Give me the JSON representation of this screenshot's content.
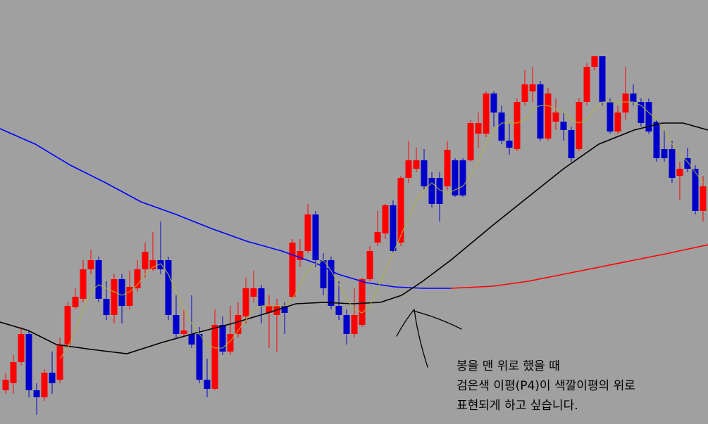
{
  "chart_data": {
    "type": "candlestick",
    "xlim": [
      -0.73,
      90.64
    ],
    "ylim": [
      0,
      600
    ],
    "up_color": "#ff0000",
    "down_color": "#0000cc",
    "candles": {
      "x": [
        0,
        1,
        2,
        3,
        4,
        5,
        6,
        7,
        8,
        9,
        10,
        11,
        12,
        13,
        14,
        15,
        16,
        17,
        18,
        19,
        20,
        21,
        22,
        23,
        24,
        25,
        26,
        27,
        28,
        29,
        30,
        31,
        32,
        33,
        34,
        35,
        36,
        37,
        38,
        39,
        40,
        41,
        42,
        43,
        44,
        45,
        46,
        47,
        48,
        49,
        50,
        51,
        52,
        53,
        54,
        55,
        56,
        57,
        58,
        59,
        60,
        61,
        62,
        63,
        64,
        65,
        66,
        67,
        68,
        69,
        70,
        71,
        72,
        73,
        74,
        75,
        76,
        77,
        78,
        79,
        80,
        81,
        82,
        83,
        84,
        85,
        86,
        87,
        88,
        89,
        90
      ],
      "open": [
        45,
        55,
        85,
        125,
        45,
        35,
        70,
        60,
        110,
        163,
        175,
        217,
        230,
        175,
        152,
        203,
        165,
        190,
        217,
        217,
        230,
        230,
        152,
        125,
        125,
        125,
        60,
        47,
        138,
        100,
        125,
        150,
        178,
        190,
        155,
        152,
        165,
        178,
        230,
        243,
        295,
        230,
        230,
        165,
        152,
        125,
        138,
        203,
        255,
        268,
        308,
        255,
        347,
        360,
        372,
        347,
        347,
        335,
        372,
        372,
        372,
        410,
        410,
        467,
        440,
        400,
        388,
        455,
        470,
        480,
        403,
        427,
        427,
        415,
        388,
        455,
        505,
        520,
        455,
        413,
        440,
        467,
        455,
        455,
        427,
        388,
        388,
        350,
        375,
        360,
        300
      ],
      "high": [
        70,
        95,
        135,
        130,
        55,
        75,
        100,
        120,
        170,
        190,
        230,
        245,
        235,
        200,
        210,
        210,
        215,
        230,
        255,
        270,
        285,
        235,
        180,
        160,
        180,
        135,
        90,
        160,
        150,
        165,
        170,
        205,
        215,
        195,
        180,
        175,
        170,
        260,
        260,
        310,
        300,
        240,
        235,
        200,
        160,
        190,
        205,
        250,
        300,
        310,
        315,
        350,
        400,
        390,
        388,
        355,
        355,
        400,
        375,
        375,
        430,
        440,
        470,
        470,
        450,
        425,
        460,
        500,
        505,
        485,
        475,
        460,
        440,
        420,
        460,
        510,
        520,
        520,
        460,
        450,
        505,
        480,
        460,
        460,
        430,
        415,
        400,
        370,
        390,
        365,
        350
      ],
      "low": [
        40,
        40,
        80,
        35,
        10,
        30,
        40,
        55,
        105,
        160,
        170,
        210,
        170,
        145,
        140,
        140,
        160,
        185,
        205,
        215,
        210,
        145,
        120,
        120,
        105,
        55,
        35,
        45,
        95,
        95,
        120,
        140,
        170,
        140,
        105,
        100,
        125,
        175,
        220,
        240,
        220,
        180,
        160,
        145,
        110,
        120,
        135,
        200,
        250,
        260,
        240,
        250,
        340,
        355,
        330,
        305,
        285,
        330,
        320,
        320,
        370,
        390,
        405,
        420,
        395,
        380,
        385,
        450,
        455,
        400,
        400,
        415,
        400,
        370,
        385,
        450,
        500,
        450,
        410,
        410,
        430,
        450,
        420,
        410,
        370,
        370,
        340,
        315,
        355,
        295,
        285
      ],
      "close": [
        60,
        85,
        125,
        45,
        35,
        70,
        55,
        110,
        165,
        178,
        217,
        230,
        175,
        152,
        203,
        165,
        192,
        217,
        242,
        230,
        217,
        152,
        125,
        130,
        110,
        60,
        47,
        138,
        100,
        125,
        152,
        190,
        190,
        165,
        165,
        165,
        155,
        255,
        243,
        295,
        230,
        190,
        165,
        152,
        125,
        152,
        203,
        243,
        270,
        308,
        243,
        347,
        372,
        372,
        335,
        310,
        310,
        387,
        322,
        322,
        425,
        425,
        467,
        440,
        400,
        390,
        455,
        480,
        480,
        403,
        467,
        440,
        415,
        375,
        455,
        505,
        520,
        455,
        413,
        440,
        467,
        455,
        425,
        413,
        375,
        375,
        347,
        360,
        360,
        300,
        335
      ]
    },
    "lines": [
      {
        "color": "#0000ff",
        "x": [
          -0.73,
          3.82,
          8.36,
          12.91,
          17.45,
          22,
          26.55,
          31.09,
          35.64,
          40.18,
          42.91,
          46.55,
          50.18,
          53.82,
          57.45
        ],
        "values": [
          417,
          395,
          365,
          340,
          313,
          295,
          275,
          257,
          243,
          225,
          210,
          198,
          192,
          190,
          190
        ]
      },
      {
        "color": "#ff0000",
        "x": [
          57.45,
          62.91,
          67.45,
          72,
          76.55,
          81.09,
          85.64,
          90.64
        ],
        "values": [
          190,
          193,
          200,
          210,
          220,
          230,
          240,
          252
        ]
      },
      {
        "color": "#000000",
        "x": [
          -0.73,
          2.91,
          6.55,
          11.09,
          15.64,
          20.18,
          24.73,
          29.27,
          33.82,
          37.45,
          41.09,
          44.73,
          48.36,
          51.09,
          53.82,
          57.45,
          62.91,
          67.45,
          72,
          76.55,
          81.09,
          84.73,
          87.45,
          90.64
        ],
        "values": [
          142,
          130,
          110,
          103,
          97,
          113,
          127,
          140,
          155,
          168,
          170,
          168,
          170,
          180,
          200,
          230,
          280,
          320,
          360,
          395,
          415,
          425,
          425,
          415
        ]
      },
      {
        "color": "#b4b43c",
        "values": [
          null,
          null,
          null,
          null,
          null,
          null,
          null,
          90,
          105,
          130,
          160,
          185,
          195,
          190,
          185,
          180,
          185,
          195,
          210,
          220,
          225,
          210,
          185,
          160,
          140,
          125,
          110,
          105,
          105,
          115,
          130,
          145,
          160,
          165,
          165,
          165,
          165,
          175,
          195,
          215,
          225,
          230,
          215,
          195,
          175,
          160,
          155,
          165,
          190,
          215,
          240,
          265,
          290,
          315,
          330,
          340,
          330,
          325,
          330,
          335,
          350,
          370,
          395,
          415,
          425,
          425,
          425,
          430,
          445,
          450,
          450,
          445,
          440,
          430,
          425,
          430,
          445,
          455,
          455,
          455,
          455,
          455,
          450,
          440,
          430,
          415,
          395,
          380,
          370,
          355,
          340
        ]
      }
    ],
    "annotation": [
      "봉을 맨 위로 했을 때",
      "검은색 이평(P4)이 색깔이평의 위로",
      "표현되게 하고 싶습니다."
    ]
  }
}
